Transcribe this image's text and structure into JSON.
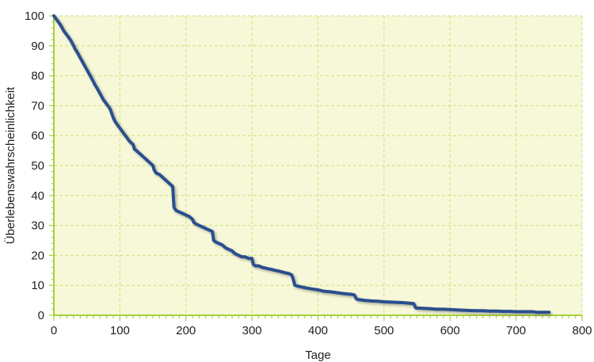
{
  "chart_data": {
    "type": "line",
    "title": "",
    "xlabel": "Tage",
    "ylabel": "Überlebenswahrscheinlichkeit",
    "xlim": [
      0,
      800
    ],
    "ylim": [
      0,
      100
    ],
    "x_ticks": [
      "0",
      "100",
      "200",
      "300",
      "400",
      "500",
      "600",
      "700",
      "800"
    ],
    "y_ticks": [
      "0",
      "10",
      "20",
      "30",
      "40",
      "50",
      "60",
      "70",
      "80",
      "90",
      "100"
    ],
    "grid": true,
    "legend": "none",
    "colors": {
      "plot_background": "#f7f8d8",
      "grid": "#c9e27a",
      "axis": "#a9cf3d",
      "line": "#2a4f8f"
    },
    "series": [
      {
        "x": [
          0,
          5,
          10,
          15,
          20,
          25,
          30,
          32,
          35,
          40,
          45,
          50,
          55,
          60,
          62,
          65,
          70,
          75,
          80,
          85,
          90,
          92,
          95,
          100,
          105,
          110,
          115,
          120,
          122,
          125,
          130,
          135,
          140,
          145,
          150,
          152,
          155,
          160,
          165,
          170,
          175,
          180,
          182,
          185,
          190,
          195,
          200,
          205,
          210,
          212,
          215,
          220,
          225,
          230,
          235,
          240,
          242,
          245,
          250,
          255,
          260,
          265,
          270,
          272,
          275,
          280,
          285,
          290,
          295,
          300,
          302,
          305,
          310,
          315,
          320,
          325,
          330,
          335,
          340,
          345,
          350,
          355,
          360,
          362,
          365,
          370,
          380,
          390,
          400,
          410,
          420,
          430,
          440,
          450,
          455,
          458,
          460,
          470,
          480,
          490,
          500,
          510,
          520,
          530,
          540,
          545,
          548,
          550,
          560,
          570,
          580,
          590,
          600,
          610,
          620,
          630,
          640,
          650,
          660,
          670,
          680,
          690,
          700,
          710,
          720,
          725,
          730,
          740,
          750
        ],
        "y": [
          100,
          98.5,
          97,
          95,
          93.5,
          92,
          90,
          89,
          88,
          86,
          84,
          82,
          80,
          78,
          77,
          76,
          74,
          72,
          70.5,
          69,
          66,
          65,
          64,
          62.5,
          61,
          59.5,
          58,
          57,
          55.5,
          55,
          54,
          53,
          52,
          51,
          50,
          48.5,
          47.5,
          47,
          46,
          45,
          44,
          43,
          36,
          35,
          34.5,
          34,
          33.5,
          33,
          32,
          31,
          30.5,
          30,
          29.5,
          29,
          28.5,
          28,
          25,
          24.5,
          24,
          23.5,
          22.5,
          22,
          21.5,
          21,
          20.5,
          20,
          19.5,
          19.5,
          19,
          19,
          17,
          16.5,
          16.5,
          16,
          15.8,
          15.5,
          15.3,
          15,
          14.8,
          14.5,
          14.2,
          14,
          13.5,
          12.5,
          10,
          9.7,
          9.2,
          8.8,
          8.5,
          8,
          7.8,
          7.5,
          7.2,
          7,
          6.8,
          5.5,
          5.3,
          5,
          4.8,
          4.7,
          4.5,
          4.4,
          4.3,
          4.2,
          4,
          3.9,
          2.5,
          2.4,
          2.3,
          2.2,
          2,
          2,
          1.9,
          1.8,
          1.7,
          1.6,
          1.5,
          1.5,
          1.4,
          1.4,
          1.3,
          1.3,
          1.2,
          1.2,
          1.2,
          1.2,
          1,
          1,
          1
        ]
      }
    ]
  }
}
